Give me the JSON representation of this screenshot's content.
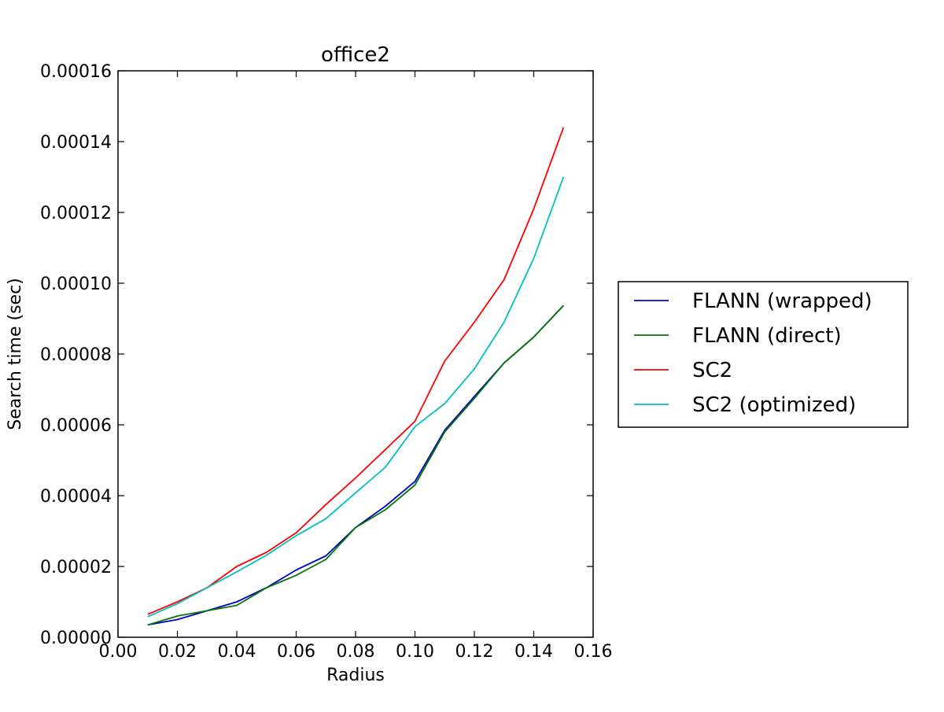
{
  "chart_data": {
    "type": "line",
    "title": "office2",
    "xlabel": "Radius",
    "ylabel": "Search time (sec)",
    "xlim": [
      0.0,
      0.16
    ],
    "ylim": [
      0.0,
      0.00016
    ],
    "xticks": [
      "0.00",
      "0.02",
      "0.04",
      "0.06",
      "0.08",
      "0.10",
      "0.12",
      "0.14",
      "0.16"
    ],
    "yticks": [
      "0.00000",
      "0.00002",
      "0.00004",
      "0.00006",
      "0.00008",
      "0.00010",
      "0.00012",
      "0.00014",
      "0.00016"
    ],
    "xtick_values": [
      0.0,
      0.02,
      0.04,
      0.06,
      0.08,
      0.1,
      0.12,
      0.14,
      0.16
    ],
    "ytick_values": [
      0.0,
      2e-05,
      4e-05,
      6e-05,
      8e-05,
      0.0001,
      0.00012,
      0.00014,
      0.00016
    ],
    "x": [
      0.01,
      0.02,
      0.03,
      0.04,
      0.05,
      0.06,
      0.07,
      0.08,
      0.09,
      0.1,
      0.11,
      0.12,
      0.13,
      0.14,
      0.15
    ],
    "legend_position": "outside-right",
    "grid": false,
    "series": [
      {
        "name": "FLANN (wrapped)",
        "color": "#0000cc",
        "values": [
          3.5e-06,
          5e-06,
          7.5e-06,
          1e-05,
          1.4e-05,
          1.9e-05,
          2.3e-05,
          3.1e-05,
          3.7e-05,
          4.4e-05,
          5.85e-05,
          6.8e-05,
          7.75e-05,
          8.48e-05,
          9.37e-05
        ]
      },
      {
        "name": "FLANN (direct)",
        "color": "#007700",
        "values": [
          3.5e-06,
          6e-06,
          7.5e-06,
          9e-06,
          1.4e-05,
          1.75e-05,
          2.2e-05,
          3.1e-05,
          3.6e-05,
          4.3e-05,
          5.8e-05,
          6.75e-05,
          7.75e-05,
          8.48e-05,
          9.37e-05
        ]
      },
      {
        "name": "SC2",
        "color": "#ff0000",
        "values": [
          6.5e-06,
          1e-05,
          1.4e-05,
          2e-05,
          2.4e-05,
          2.95e-05,
          3.75e-05,
          4.5e-05,
          5.3e-05,
          6.1e-05,
          7.8e-05,
          8.9e-05,
          0.000101,
          0.000121,
          0.000144
        ]
      },
      {
        "name": "SC2 (optimized)",
        "color": "#00bfbf",
        "values": [
          5.8e-06,
          9.5e-06,
          1.4e-05,
          1.85e-05,
          2.32e-05,
          2.87e-05,
          3.35e-05,
          4.08e-05,
          4.8e-05,
          5.95e-05,
          6.6e-05,
          7.58e-05,
          8.9e-05,
          0.000107,
          0.00013
        ]
      }
    ]
  }
}
